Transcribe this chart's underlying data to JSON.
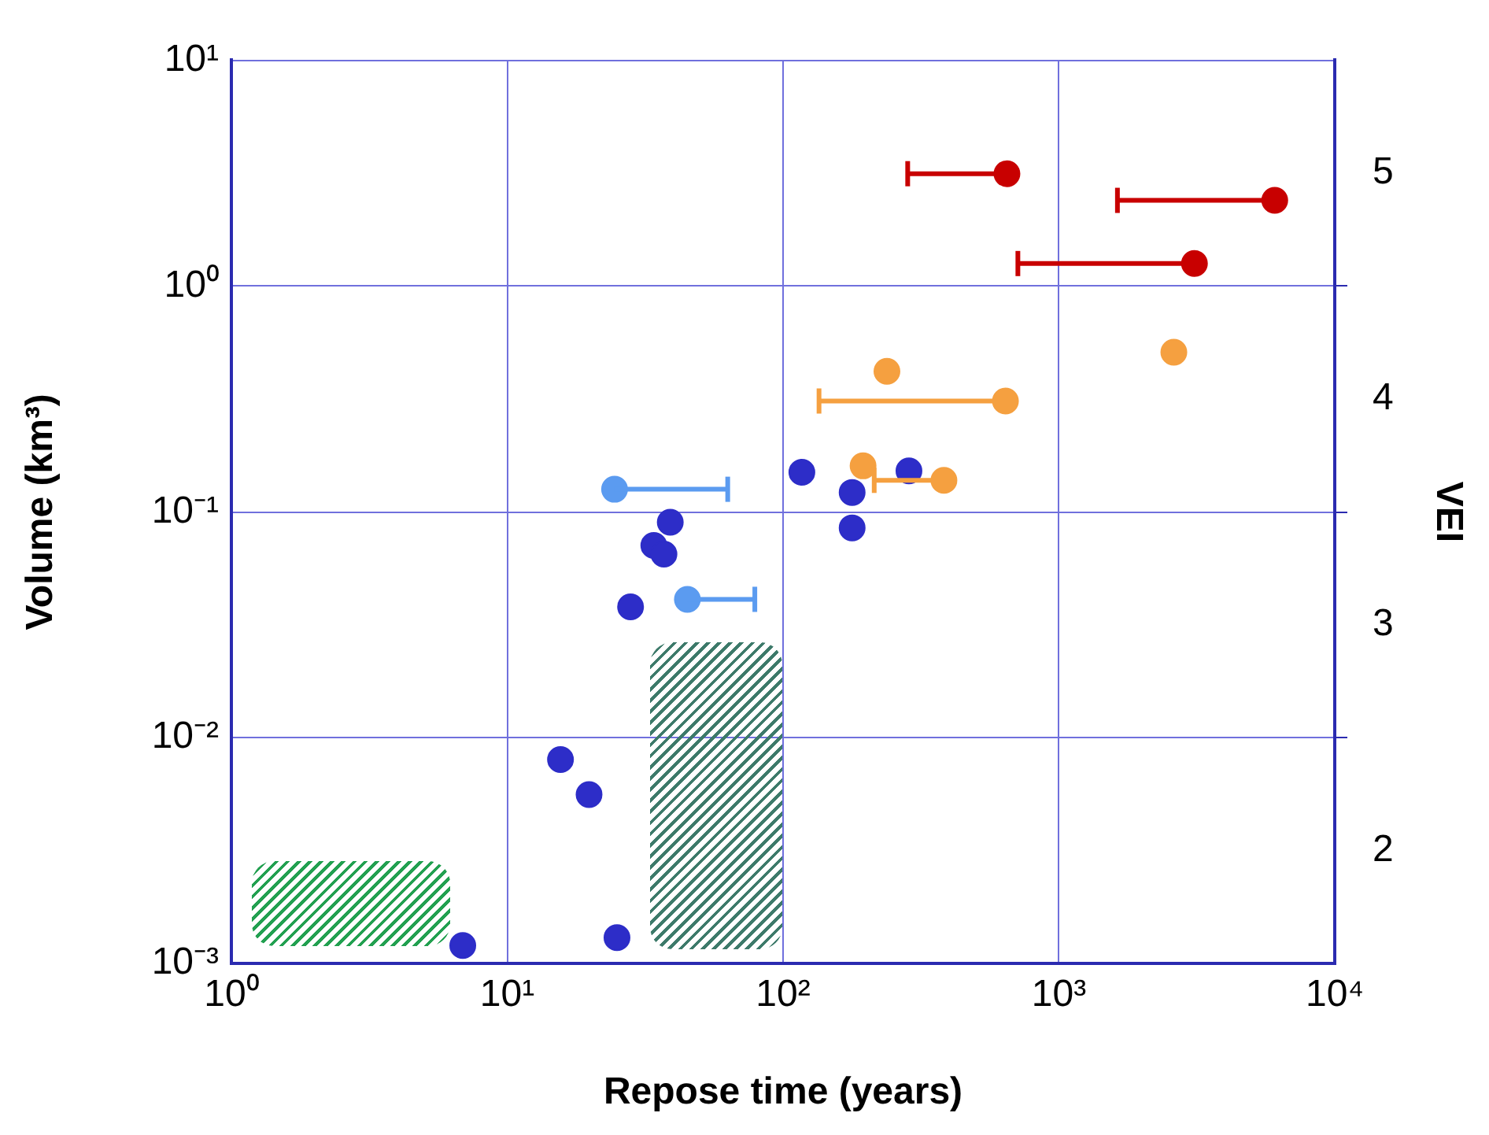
{
  "chart_data": {
    "type": "scatter",
    "xlabel": "Repose time (years)",
    "ylabel": "Volume (km³)",
    "y2label": "VEI",
    "log": "xy",
    "grid": true,
    "legend": false,
    "marker": "circle",
    "xlim": [
      1,
      10000
    ],
    "xticks": [
      {
        "value": 1,
        "label": "10⁰"
      },
      {
        "value": 10,
        "label": "10¹"
      },
      {
        "value": 100,
        "label": "10²"
      },
      {
        "value": 1000,
        "label": "10³"
      },
      {
        "value": 10000,
        "label": "10⁴"
      }
    ],
    "ylim": [
      0.001,
      10
    ],
    "yticks": [
      {
        "value": 0.001,
        "label": "10⁻³"
      },
      {
        "value": 0.01,
        "label": "10⁻²"
      },
      {
        "value": 0.1,
        "label": "10⁻¹"
      },
      {
        "value": 1,
        "label": "10⁰"
      },
      {
        "value": 10,
        "label": "10¹"
      }
    ],
    "y2lim": [
      1.5,
      5.5
    ],
    "y2ticks": [
      2,
      {
        "value": 2.5,
        "label": null
      },
      3,
      {
        "value": 3.5,
        "label": null
      },
      4,
      {
        "value": 4.5,
        "label": null
      },
      5
    ],
    "series": [
      {
        "color": "#2d2dc8",
        "x": [
          6.9,
          15.6,
          19.8,
          25,
          28,
          34,
          37,
          39,
          117,
          178,
          178,
          286
        ],
        "values": [
          0.0012,
          0.008,
          0.0056,
          0.0013,
          0.038,
          0.071,
          0.065,
          0.09,
          0.15,
          0.122,
          0.085,
          0.152
        ]
      },
      {
        "color": "#5b9bf0",
        "x": [
          24.5,
          45
        ],
        "values": [
          0.126,
          0.041
        ],
        "xerrors": [
          [
            24.5,
            63
          ],
          [
            45,
            79
          ]
        ]
      },
      {
        "color": "#f5a040",
        "x": [
          238,
          640,
          195,
          383,
          2610
        ],
        "values": [
          0.42,
          0.31,
          0.16,
          0.138,
          0.51
        ],
        "xerrors": [
          null,
          [
            135,
            640
          ],
          null,
          [
            214,
            383
          ],
          null
        ]
      },
      {
        "color": "#c80000",
        "x": [
          648,
          6060,
          3100
        ],
        "values": [
          3.15,
          2.4,
          1.26
        ],
        "xerrors": [
          [
            283,
            648
          ],
          [
            1630,
            6060
          ],
          [
            710,
            3100
          ]
        ]
      }
    ]
  }
}
